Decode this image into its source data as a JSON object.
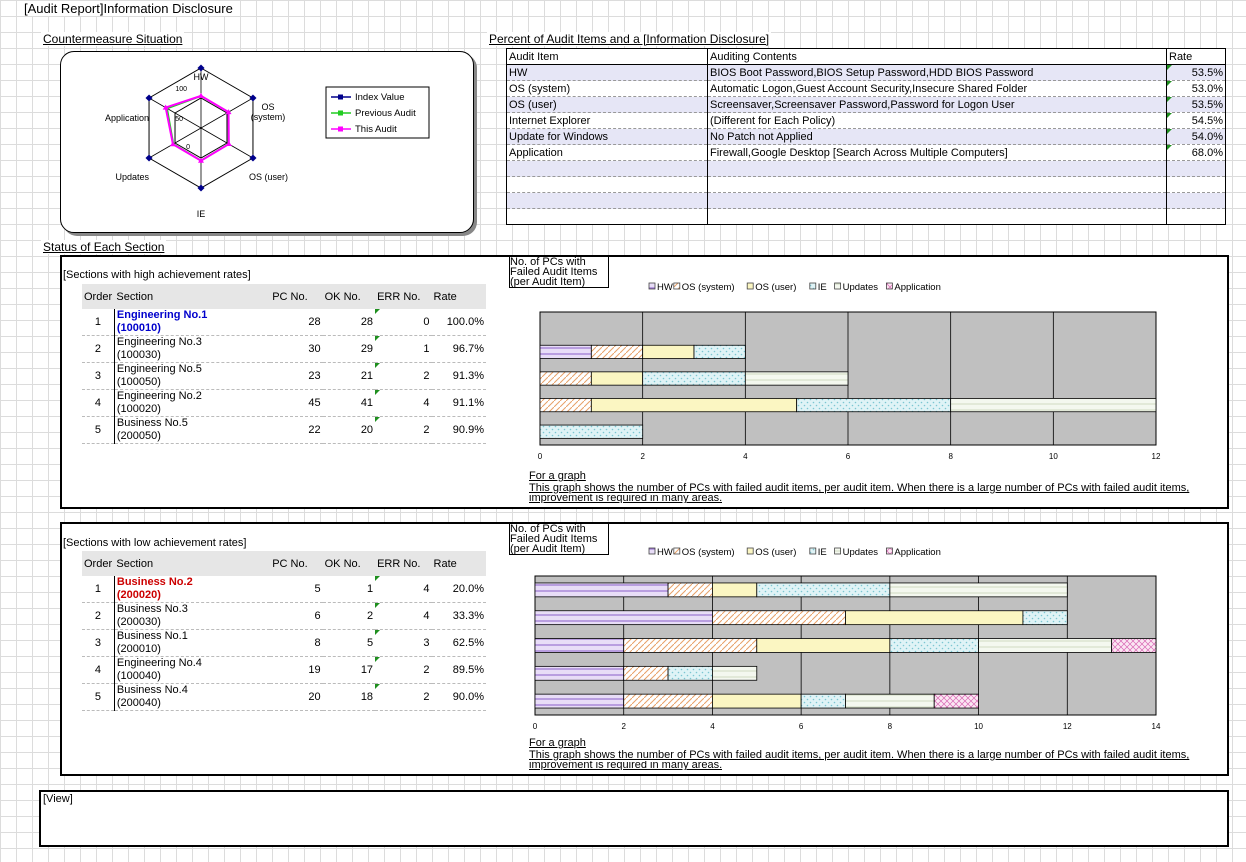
{
  "title": "[Audit Report]Information Disclosure",
  "countermeasure": {
    "heading": "Countermeasure Situation",
    "axes": [
      "HW",
      "OS\n(system)",
      "OS (user)",
      "IE",
      "Updates",
      "Application"
    ],
    "ticks": [
      "100",
      "50",
      "0"
    ],
    "legend": [
      "Index Value",
      "Previous Audit",
      "This Audit"
    ],
    "colors": {
      "index": "#00008b",
      "previous": "#22cc22",
      "this": "#ff00ff"
    }
  },
  "audit": {
    "heading": "Percent of Audit Items and a [Information Disclosure]",
    "headers": [
      "Audit Item",
      "Auditing Contents",
      "Rate"
    ],
    "rows": [
      {
        "item": "HW",
        "contents": "BIOS Boot Password,BIOS Setup Password,HDD BIOS Password",
        "rate": "53.5%"
      },
      {
        "item": "OS (system)",
        "contents": "Automatic Logon,Guest Account Security,Insecure Shared Folder",
        "rate": "53.0%"
      },
      {
        "item": "OS (user)",
        "contents": "Screensaver,Screensaver Password,Password for Logon User",
        "rate": "53.5%"
      },
      {
        "item": "Internet Explorer",
        "contents": "(Different for Each Policy)",
        "rate": "54.5%"
      },
      {
        "item": "Update for Windows",
        "contents": "No Patch not Applied",
        "rate": "54.0%"
      },
      {
        "item": "Application",
        "contents": "Firewall,Google Desktop [Search Across Multiple Computers]",
        "rate": "68.0%"
      }
    ]
  },
  "status_heading": "Status of Each Section",
  "table_headers": [
    "Order",
    "Section",
    "PC No.",
    "OK No.",
    "ERR No.",
    "Rate"
  ],
  "high": {
    "title": "[Sections with high achievement rates]",
    "rows": [
      {
        "order": "1",
        "name": "Engineering No.1",
        "code": "(100010)",
        "pc": "28",
        "ok": "28",
        "err": "0",
        "rate": "100.0%"
      },
      {
        "order": "2",
        "name": "Engineering No.3",
        "code": "(100030)",
        "pc": "30",
        "ok": "29",
        "err": "1",
        "rate": "96.7%"
      },
      {
        "order": "3",
        "name": "Engineering No.5",
        "code": "(100050)",
        "pc": "23",
        "ok": "21",
        "err": "2",
        "rate": "91.3%"
      },
      {
        "order": "4",
        "name": "Engineering No.2",
        "code": "(100020)",
        "pc": "45",
        "ok": "41",
        "err": "4",
        "rate": "91.1%"
      },
      {
        "order": "5",
        "name": "Business No.5",
        "code": "(200050)",
        "pc": "22",
        "ok": "20",
        "err": "2",
        "rate": "90.9%"
      }
    ]
  },
  "low": {
    "title": "[Sections with low achievement rates]",
    "rows": [
      {
        "order": "1",
        "name": "Business No.2",
        "code": "(200020)",
        "pc": "5",
        "ok": "1",
        "err": "4",
        "rate": "20.0%"
      },
      {
        "order": "2",
        "name": "Business No.3",
        "code": "(200030)",
        "pc": "6",
        "ok": "2",
        "err": "4",
        "rate": "33.3%"
      },
      {
        "order": "3",
        "name": "Business No.1",
        "code": "(200010)",
        "pc": "8",
        "ok": "5",
        "err": "3",
        "rate": "62.5%"
      },
      {
        "order": "4",
        "name": "Engineering No.4",
        "code": "(100040)",
        "pc": "19",
        "ok": "17",
        "err": "2",
        "rate": "89.5%"
      },
      {
        "order": "5",
        "name": "Business No.4",
        "code": "(200040)",
        "pc": "20",
        "ok": "18",
        "err": "2",
        "rate": "90.0%"
      }
    ]
  },
  "chart_legend": [
    "HW",
    "OS (system)",
    "OS (user)",
    "IE",
    "Updates",
    "Application"
  ],
  "chart_ylabel": "No. of PCs with Failed Audit Items (per Audit Item)",
  "note_title": "For a graph",
  "note_line1": "This graph shows the number of PCs with failed audit items, per audit item. When there is a large number of PCs with failed audit items,",
  "note_line2": "improvement is required in many areas.",
  "view_label": "[View]",
  "chart_data": [
    {
      "type": "bar",
      "stacked": true,
      "orientation": "horizontal",
      "ylabel": "No. of PCs with Failed Audit Items (per Audit Item)",
      "xlim": [
        0,
        12
      ],
      "xticks": [
        0,
        2,
        4,
        6,
        8,
        10,
        12
      ],
      "categories": [
        "Engineering No.1",
        "Engineering No.3",
        "Engineering No.5",
        "Engineering No.2",
        "Business No.5"
      ],
      "series": [
        {
          "name": "HW",
          "values": [
            0,
            1,
            0,
            0,
            0
          ]
        },
        {
          "name": "OS (system)",
          "values": [
            0,
            1,
            1,
            1,
            0
          ]
        },
        {
          "name": "OS (user)",
          "values": [
            0,
            1,
            1,
            4,
            0
          ]
        },
        {
          "name": "IE",
          "values": [
            0,
            1,
            2,
            3,
            2
          ]
        },
        {
          "name": "Updates",
          "values": [
            0,
            0,
            2,
            4,
            0
          ]
        },
        {
          "name": "Application",
          "values": [
            0,
            0,
            0,
            0,
            0
          ]
        }
      ]
    },
    {
      "type": "bar",
      "stacked": true,
      "orientation": "horizontal",
      "ylabel": "No. of PCs with Failed Audit Items (per Audit Item)",
      "xlim": [
        0,
        14
      ],
      "xticks": [
        0,
        2,
        4,
        6,
        8,
        10,
        12,
        14
      ],
      "categories": [
        "Business No.2",
        "Business No.3",
        "Business No.1",
        "Engineering No.4",
        "Business No.4"
      ],
      "series": [
        {
          "name": "HW",
          "values": [
            3,
            4,
            2,
            2,
            2
          ]
        },
        {
          "name": "OS (system)",
          "values": [
            1,
            3,
            3,
            1,
            2
          ]
        },
        {
          "name": "OS (user)",
          "values": [
            1,
            4,
            3,
            0,
            2
          ]
        },
        {
          "name": "IE",
          "values": [
            3,
            1,
            2,
            1,
            1
          ]
        },
        {
          "name": "Updates",
          "values": [
            4,
            0,
            3,
            1,
            2
          ]
        },
        {
          "name": "Application",
          "values": [
            0,
            0,
            1,
            0,
            1
          ]
        }
      ]
    }
  ]
}
